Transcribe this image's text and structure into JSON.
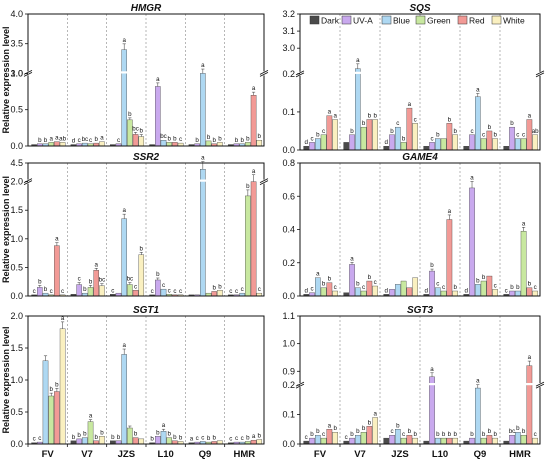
{
  "chart_data": [
    {
      "type": "bar",
      "title": "HMGR",
      "ylabel": "Relative expression level",
      "categories": [
        "FV",
        "V7",
        "JZS",
        "L10",
        "Q9",
        "HMR"
      ],
      "ylim": [
        0,
        4.0
      ],
      "yticks": [
        "0.0",
        "0.5",
        "1.0",
        "3.0",
        "3.5",
        "4.0"
      ],
      "series": [
        {
          "name": "Dark",
          "values": [
            0.02,
            0.02,
            0.02,
            0.02,
            0.02,
            0.02
          ]
        },
        {
          "name": "UV-A",
          "values": [
            0.03,
            0.03,
            0.03,
            0.82,
            0.03,
            0.03
          ]
        },
        {
          "name": "Blue",
          "values": [
            0.03,
            0.04,
            3.4,
            0.08,
            2.95,
            0.03
          ]
        },
        {
          "name": "Green",
          "values": [
            0.05,
            0.03,
            0.36,
            0.05,
            0.07,
            0.05
          ]
        },
        {
          "name": "Red",
          "values": [
            0.06,
            0.04,
            0.16,
            0.05,
            0.03,
            0.7
          ]
        },
        {
          "name": "White",
          "values": [
            0.05,
            0.06,
            0.13,
            0.04,
            0.05,
            0.08
          ]
        }
      ],
      "letters": [
        [
          "",
          "d",
          "",
          "",
          "",
          ""
        ],
        [
          "b",
          "c",
          "c",
          "a",
          "b",
          "b"
        ],
        [
          "b",
          "bc",
          "a",
          "bc",
          "a",
          "b"
        ],
        [
          "a",
          "c",
          "b",
          "b",
          "b",
          "b"
        ],
        [
          "a",
          "b",
          "bc",
          "b",
          "b",
          "a"
        ],
        [
          "ab",
          "a",
          "b",
          "c",
          "b",
          "b"
        ]
      ]
    },
    {
      "type": "bar",
      "title": "SSR2",
      "ylabel": "Relative expression level",
      "categories": [
        "FV",
        "V7",
        "JZS",
        "L10",
        "Q9",
        "HMR"
      ],
      "ylim": [
        0,
        4.5
      ],
      "yticks": [
        "0.0",
        "0.5",
        "1.0",
        "1.5",
        "2.0",
        "4.5"
      ],
      "series": [
        {
          "name": "Dark",
          "values": [
            0.02,
            0.03,
            0.03,
            0.02,
            0.02,
            0.02
          ]
        },
        {
          "name": "UV-A",
          "values": [
            0.15,
            0.2,
            0.05,
            0.28,
            0.02,
            0.02
          ]
        },
        {
          "name": "Blue",
          "values": [
            0.05,
            0.05,
            1.35,
            0.12,
            4.45,
            0.05
          ]
        },
        {
          "name": "Green",
          "values": [
            0.02,
            0.15,
            0.2,
            0.03,
            0.05,
            1.75
          ]
        },
        {
          "name": "Red",
          "values": [
            0.88,
            0.45,
            0.1,
            0.02,
            0.08,
            2.25
          ]
        },
        {
          "name": "White",
          "values": [
            0.02,
            0.18,
            0.72,
            0.02,
            0.1,
            0.05
          ]
        }
      ],
      "letters": [
        [
          "c",
          "",
          "c",
          "c",
          "",
          "c"
        ],
        [
          "b",
          "c",
          "",
          "b",
          "",
          "c"
        ],
        [
          "b",
          "b",
          "a",
          "c",
          "a",
          "c"
        ],
        [
          "c",
          "b",
          "bc",
          "c",
          "",
          "b"
        ],
        [
          "a",
          "a",
          "c",
          "c",
          "b",
          "a"
        ],
        [
          "c",
          "bc",
          "b",
          "c",
          "b",
          "c"
        ]
      ]
    },
    {
      "type": "bar",
      "title": "SGT1",
      "ylabel": "Relative expression level",
      "categories": [
        "FV",
        "V7",
        "JZS",
        "L10",
        "Q9",
        "HMR"
      ],
      "ylim": [
        0,
        2.0
      ],
      "yticks": [
        "0.0",
        "0.5",
        "1.0",
        "1.5",
        "2.0"
      ],
      "series": [
        {
          "name": "Dark",
          "values": [
            0.02,
            0.05,
            0.05,
            0.02,
            0.02,
            0.02
          ]
        },
        {
          "name": "UV-A",
          "values": [
            0.03,
            0.08,
            0.05,
            0.12,
            0.03,
            0.03
          ]
        },
        {
          "name": "Blue",
          "values": [
            1.3,
            0.1,
            1.4,
            0.2,
            0.04,
            0.03
          ]
        },
        {
          "name": "Green",
          "values": [
            0.75,
            0.35,
            0.25,
            0.1,
            0.03,
            0.04
          ]
        },
        {
          "name": "Red",
          "values": [
            0.82,
            0.05,
            0.1,
            0.05,
            0.04,
            0.06
          ]
        },
        {
          "name": "White",
          "values": [
            1.8,
            0.12,
            0.08,
            0.04,
            0.05,
            0.07
          ]
        }
      ],
      "letters": [
        [
          "c",
          "b",
          "b",
          "b",
          "a",
          "c"
        ],
        [
          "c",
          "b",
          "b",
          "b",
          "c",
          "c"
        ],
        [
          "",
          "b",
          "a",
          "a",
          "c",
          "c"
        ],
        [
          "b",
          "a",
          "",
          "b",
          "b",
          "b"
        ],
        [
          "b",
          "b",
          "b",
          "b",
          "b",
          "a"
        ],
        [
          "a",
          "b",
          "",
          "b",
          "",
          "b"
        ]
      ]
    },
    {
      "type": "bar",
      "title": "SQS",
      "categories": [
        "FV",
        "V7",
        "JZS",
        "L10",
        "Q9",
        "HMR"
      ],
      "ylim": [
        0,
        3.2
      ],
      "yticks": [
        "0.0",
        "0.1",
        "0.2",
        "3.0",
        "3.1",
        "3.2"
      ],
      "series": [
        {
          "name": "Dark",
          "values": [
            0.01,
            0.02,
            0.01,
            0.01,
            0.01,
            0.01
          ]
        },
        {
          "name": "UV-A",
          "values": [
            0.02,
            0.04,
            0.04,
            0.02,
            0.04,
            0.06
          ]
        },
        {
          "name": "Blue",
          "values": [
            0.03,
            2.88,
            0.06,
            0.03,
            0.14,
            0.03
          ]
        },
        {
          "name": "Green",
          "values": [
            0.04,
            0.06,
            0.02,
            0.03,
            0.03,
            0.03
          ]
        },
        {
          "name": "Red",
          "values": [
            0.09,
            0.08,
            0.11,
            0.07,
            0.05,
            0.08
          ]
        },
        {
          "name": "White",
          "values": [
            0.08,
            0.08,
            0.07,
            0.04,
            0.03,
            0.04
          ]
        }
      ],
      "letters": [
        [
          "d",
          "",
          "d",
          "",
          "",
          ""
        ],
        [
          "c",
          "b",
          "b",
          "c",
          "c",
          "b"
        ],
        [
          "b",
          "a",
          "c",
          "b",
          "a",
          "c"
        ],
        [
          "c",
          "b",
          "b",
          "",
          "c",
          "c"
        ],
        [
          "a",
          "b",
          "a",
          "b",
          "b",
          "a"
        ],
        [
          "a",
          "b",
          "c",
          "b",
          "b",
          "ab"
        ]
      ]
    },
    {
      "type": "bar",
      "title": "GAME4",
      "categories": [
        "FV",
        "V7",
        "JZS",
        "L10",
        "Q9",
        "HMR"
      ],
      "ylim": [
        0,
        0.8
      ],
      "yticks": [
        "0.0",
        "0.2",
        "0.4",
        "0.6",
        "0.8"
      ],
      "series": [
        {
          "name": "Dark",
          "values": [
            0.01,
            0.02,
            0.01,
            0.01,
            0.01,
            0.01
          ]
        },
        {
          "name": "UV-A",
          "values": [
            0.02,
            0.19,
            0.04,
            0.15,
            0.65,
            0.03
          ]
        },
        {
          "name": "Blue",
          "values": [
            0.11,
            0.05,
            0.07,
            0.05,
            0.07,
            0.03
          ]
        },
        {
          "name": "Green",
          "values": [
            0.05,
            0.03,
            0.09,
            0.03,
            0.09,
            0.39
          ]
        },
        {
          "name": "Red",
          "values": [
            0.08,
            0.09,
            0.05,
            0.46,
            0.12,
            0.05
          ]
        },
        {
          "name": "White",
          "values": [
            0.03,
            0.06,
            0.11,
            0.03,
            0.04,
            0.03
          ]
        }
      ],
      "letters": [
        [
          "d",
          "",
          "d",
          "d",
          "d",
          "c"
        ],
        [
          "c",
          "a",
          "",
          "b",
          "a",
          "b"
        ],
        [
          "a",
          "b",
          "",
          "c",
          "b",
          "b"
        ],
        [
          "b",
          "c",
          "",
          "c",
          "b",
          "a"
        ],
        [
          "b",
          "b",
          "",
          "a",
          "",
          "b"
        ],
        [
          "c",
          "c",
          "",
          "b",
          "c",
          "c"
        ]
      ]
    },
    {
      "type": "bar",
      "title": "SGT3",
      "categories": [
        "FV",
        "V7",
        "JZS",
        "L10",
        "Q9",
        "HMR"
      ],
      "ylim": [
        0,
        1.1
      ],
      "yticks": [
        "0.0",
        "0.1",
        "0.2",
        "0.9",
        "1.0",
        "1.1"
      ],
      "series": [
        {
          "name": "Dark",
          "values": [
            0.01,
            0.01,
            0.02,
            0.01,
            0.01,
            0.01
          ]
        },
        {
          "name": "UV-A",
          "values": [
            0.02,
            0.02,
            0.03,
            0.88,
            0.02,
            0.03
          ]
        },
        {
          "name": "Blue",
          "values": [
            0.03,
            0.03,
            0.05,
            0.02,
            0.19,
            0.04
          ]
        },
        {
          "name": "Green",
          "values": [
            0.02,
            0.04,
            0.02,
            0.02,
            0.02,
            0.03
          ]
        },
        {
          "name": "Red",
          "values": [
            0.05,
            0.06,
            0.03,
            0.02,
            0.03,
            0.92
          ]
        },
        {
          "name": "White",
          "values": [
            0.04,
            0.09,
            0.02,
            0.02,
            0.02,
            0.02
          ]
        }
      ],
      "letters": [
        [
          "c",
          "c",
          "",
          "",
          "",
          ""
        ],
        [
          "b",
          "b",
          "c",
          "a",
          "b",
          "bc"
        ],
        [
          "b",
          "b",
          "b",
          "b",
          "a",
          "b"
        ],
        [
          "c",
          "b",
          "c",
          "b",
          "b",
          "b"
        ],
        [
          "a",
          "b",
          "b",
          "b",
          "b",
          "a"
        ],
        [
          "b",
          "a",
          "b",
          "b",
          "b",
          "c"
        ]
      ]
    }
  ],
  "legend": {
    "placement": "top-right",
    "items": [
      {
        "label": "Dark",
        "color": "#4a4a4a"
      },
      {
        "label": "UV-A",
        "color": "#c9a9ee"
      },
      {
        "label": "Blue",
        "color": "#aed8f2"
      },
      {
        "label": "Green",
        "color": "#c8e8a0"
      },
      {
        "label": "Red",
        "color": "#f29a96"
      },
      {
        "label": "White",
        "color": "#faf0c0"
      }
    ]
  }
}
